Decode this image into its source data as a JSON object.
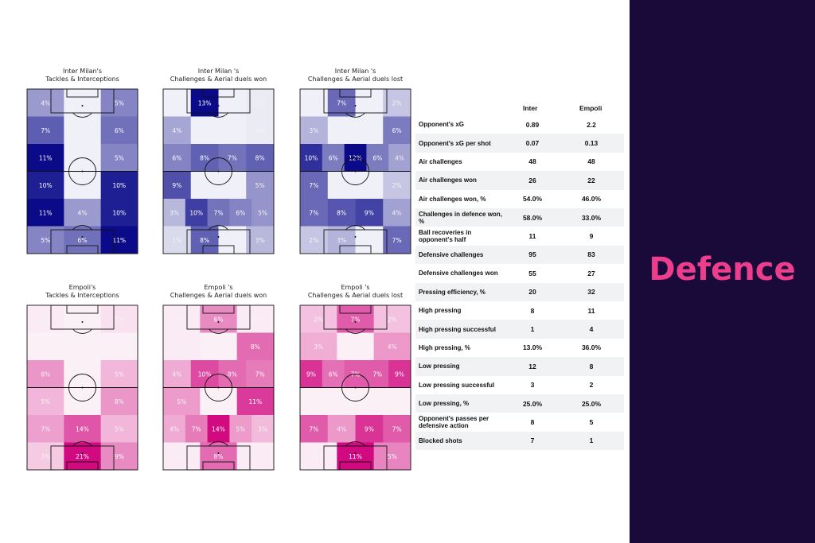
{
  "side_title": "Defence",
  "colors": {
    "inter": "#0b0b8a",
    "empoli": "#d10a80",
    "panel": "#1a0a3a",
    "accent": "#ec3e8c"
  },
  "chart_data": [
    {
      "type": "heatmap",
      "team": "Inter",
      "title": "Inter Milan's\nTackles & Interceptions",
      "rows": [
        [
          "4%",
          "",
          "5%"
        ],
        [
          "7%",
          "",
          "6%"
        ],
        [
          "11%",
          "",
          "5%"
        ],
        [
          "10%",
          "",
          "10%"
        ],
        [
          "11%",
          "4%",
          "10%"
        ],
        [
          "5%",
          "6%",
          "11%"
        ]
      ]
    },
    {
      "type": "heatmap",
      "team": "Inter",
      "title": "Inter Milan 's\nChallenges & Aerial duels won",
      "rows": [
        [
          "",
          "13%",
          "",
          "0%"
        ],
        [
          "4%",
          "",
          "",
          "0%"
        ],
        [
          "6%",
          "8%",
          "7%",
          "8%"
        ],
        [
          "9%",
          "",
          "",
          "5%"
        ],
        [
          "3%",
          "10%",
          "7%",
          "6%",
          "5%"
        ],
        [
          "1%",
          "8%",
          "",
          "3%"
        ]
      ]
    },
    {
      "type": "heatmap",
      "team": "Inter",
      "title": "Inter Milan 's\nChallenges & Aerial duels lost",
      "rows": [
        [
          "",
          "7%",
          "",
          "2%"
        ],
        [
          "3%",
          "",
          "",
          "6%"
        ],
        [
          "10%",
          "6%",
          "12%",
          "6%",
          "4%"
        ],
        [
          "7%",
          "",
          "",
          "2%"
        ],
        [
          "7%",
          "8%",
          "9%",
          "4%"
        ],
        [
          "2%",
          "3%",
          "",
          "7%"
        ]
      ]
    },
    {
      "type": "heatmap",
      "team": "Empoli",
      "title": "Empoli's\nTackles & Interceptions",
      "rows": [
        [
          "0%",
          "",
          "1%"
        ],
        [
          "",
          "",
          ""
        ],
        [
          "8%",
          "",
          "5%"
        ],
        [
          "5%",
          "",
          "8%"
        ],
        [
          "7%",
          "14%",
          "5%"
        ],
        [
          "3%",
          "21%",
          "9%"
        ]
      ]
    },
    {
      "type": "heatmap",
      "team": "Empoli",
      "title": "Empoli 's\nChallenges & Aerial duels won",
      "rows": [
        [
          "0%",
          "6%",
          "0%"
        ],
        [
          "0%",
          "",
          "8%"
        ],
        [
          "4%",
          "10%",
          "8%",
          "7%"
        ],
        [
          "5%",
          "",
          "11%"
        ],
        [
          "4%",
          "7%",
          "14%",
          "5%",
          "3%"
        ],
        [
          "0%",
          "8%",
          "0%"
        ]
      ]
    },
    {
      "type": "heatmap",
      "team": "Empoli",
      "title": "Empoli 's\nChallenges & Aerial duels lost",
      "rows": [
        [
          "2%",
          "7%",
          "2%"
        ],
        [
          "3%",
          "",
          "4%"
        ],
        [
          "9%",
          "6%",
          "7%",
          "7%",
          "9%"
        ],
        [
          "",
          "",
          ""
        ],
        [
          "7%",
          "4%",
          "9%",
          "7%"
        ],
        [
          "0%",
          "11%",
          "5%"
        ]
      ]
    },
    {
      "type": "table",
      "columns": [
        "Inter",
        "Empoli"
      ],
      "rows": [
        {
          "label": "Opponent's xG",
          "inter": "0.89",
          "empoli": "2.2"
        },
        {
          "label": "Opponent's xG per shot",
          "inter": "0.07",
          "empoli": "0.13"
        },
        {
          "label": "Air challenges",
          "inter": "48",
          "empoli": "48"
        },
        {
          "label": "Air challenges won",
          "inter": "26",
          "empoli": "22"
        },
        {
          "label": "Air challenges won, %",
          "inter": "54.0%",
          "empoli": "46.0%"
        },
        {
          "label": "Challenges in defence won, %",
          "inter": "58.0%",
          "empoli": "33.0%"
        },
        {
          "label": "Ball recoveries in opponent's half",
          "inter": "11",
          "empoli": "9"
        },
        {
          "label": "Defensive challenges",
          "inter": "95",
          "empoli": "83"
        },
        {
          "label": "Defensive challenges won",
          "inter": "55",
          "empoli": "27"
        },
        {
          "label": "Pressing efficiency, %",
          "inter": "20",
          "empoli": "32"
        },
        {
          "label": "High pressing",
          "inter": "8",
          "empoli": "11"
        },
        {
          "label": "High pressing successful",
          "inter": "1",
          "empoli": "4"
        },
        {
          "label": "High pressing, %",
          "inter": "13.0%",
          "empoli": "36.0%"
        },
        {
          "label": "Low pressing",
          "inter": "12",
          "empoli": "8"
        },
        {
          "label": "Low pressing successful",
          "inter": "3",
          "empoli": "2"
        },
        {
          "label": "Low pressing, %",
          "inter": "25.0%",
          "empoli": "25.0%"
        },
        {
          "label": "Opponent's passes per defensive action",
          "inter": "8",
          "empoli": "5"
        },
        {
          "label": "Blocked shots",
          "inter": "7",
          "empoli": "1"
        }
      ]
    }
  ]
}
